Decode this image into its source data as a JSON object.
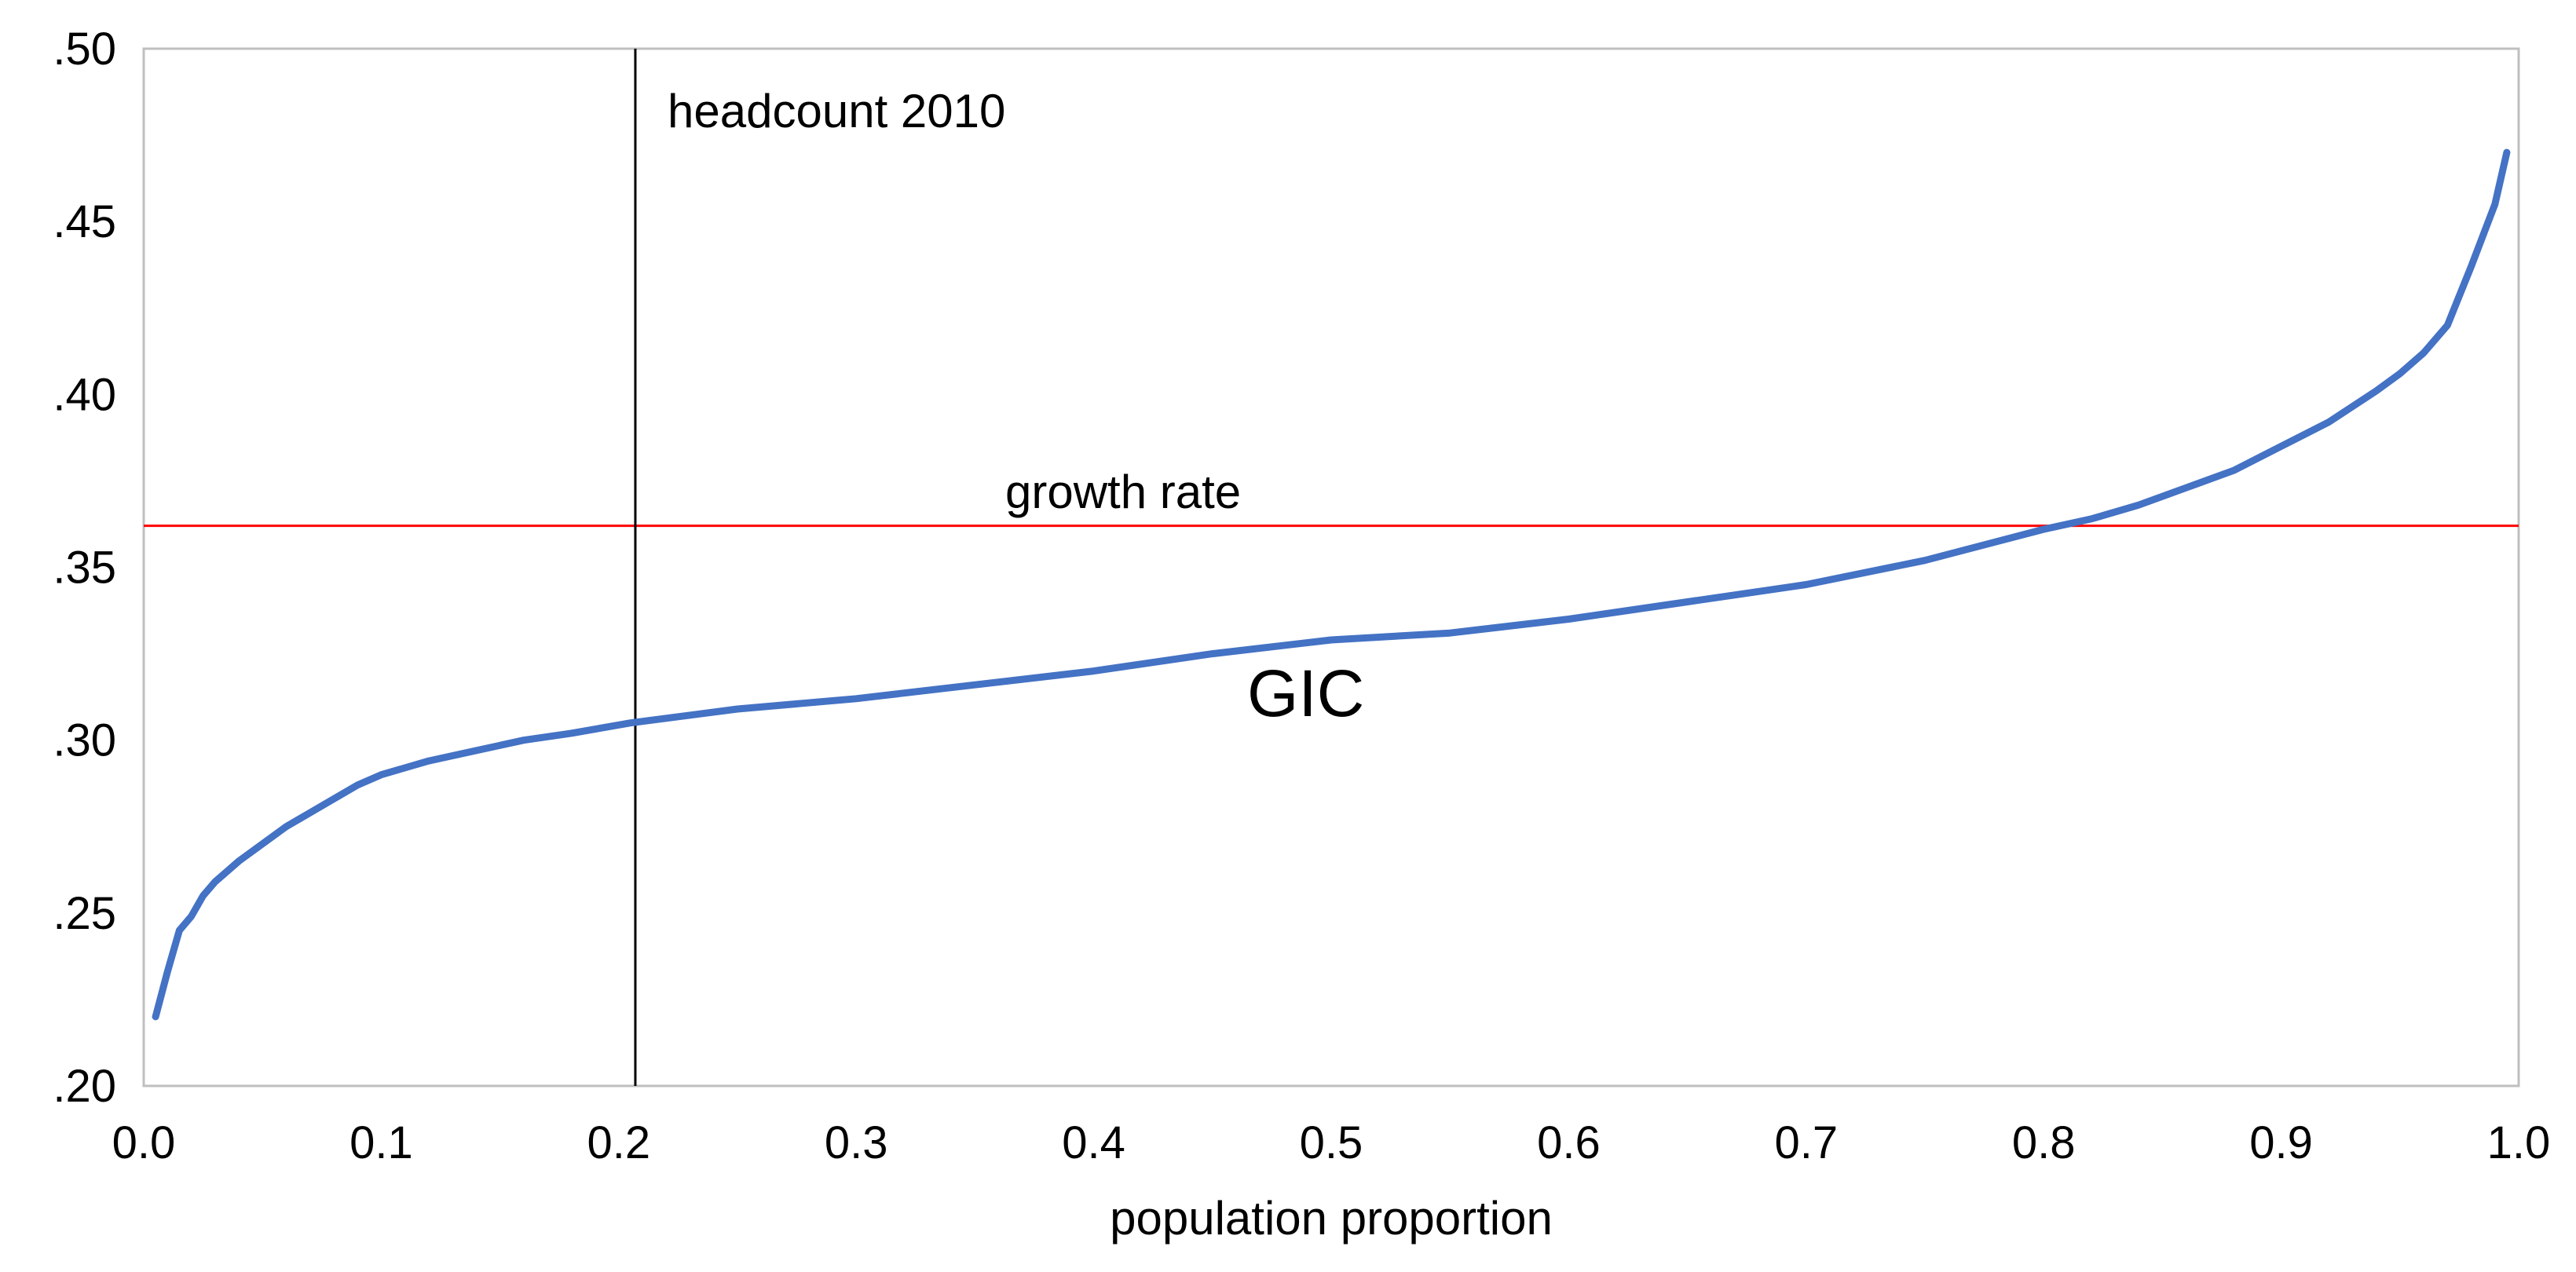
{
  "chart_data": {
    "type": "line",
    "title": "",
    "xlabel": "population proportion",
    "ylabel": "",
    "xlim": [
      0.0,
      1.0
    ],
    "ylim": [
      0.2,
      0.5
    ],
    "grid": false,
    "x_ticks": [
      0.0,
      0.1,
      0.2,
      0.3,
      0.4,
      0.5,
      0.6,
      0.7,
      0.8,
      0.9,
      1.0
    ],
    "x_tick_labels": [
      "0.0",
      "0.1",
      "0.2",
      "0.3",
      "0.4",
      "0.5",
      "0.6",
      "0.7",
      "0.8",
      "0.9",
      "1.0"
    ],
    "y_ticks": [
      0.2,
      0.25,
      0.3,
      0.35,
      0.4,
      0.45,
      0.5
    ],
    "y_tick_labels": [
      ".20",
      ".25",
      ".30",
      ".35",
      ".40",
      ".45",
      ".50"
    ],
    "series": [
      {
        "name": "GIC",
        "color": "#4472C4",
        "x": [
          0.005,
          0.01,
          0.015,
          0.02,
          0.025,
          0.03,
          0.04,
          0.05,
          0.06,
          0.07,
          0.08,
          0.09,
          0.1,
          0.12,
          0.14,
          0.16,
          0.18,
          0.205,
          0.25,
          0.3,
          0.35,
          0.4,
          0.45,
          0.5,
          0.55,
          0.6,
          0.65,
          0.7,
          0.75,
          0.8,
          0.82,
          0.84,
          0.86,
          0.88,
          0.9,
          0.92,
          0.94,
          0.95,
          0.96,
          0.97,
          0.98,
          0.99,
          0.995
        ],
        "y": [
          0.22,
          0.233,
          0.245,
          0.249,
          0.255,
          0.259,
          0.265,
          0.27,
          0.275,
          0.279,
          0.283,
          0.287,
          0.29,
          0.294,
          0.297,
          0.3,
          0.302,
          0.305,
          0.309,
          0.312,
          0.316,
          0.32,
          0.325,
          0.329,
          0.331,
          0.335,
          0.34,
          0.345,
          0.352,
          0.361,
          0.364,
          0.368,
          0.373,
          0.378,
          0.385,
          0.392,
          0.401,
          0.406,
          0.412,
          0.42,
          0.437,
          0.455,
          0.47
        ]
      }
    ],
    "reference_lines": {
      "horizontal": {
        "label": "growth rate",
        "y": 0.362,
        "color": "#FF0000"
      },
      "vertical": {
        "label": "headcount 2010",
        "x": 0.207,
        "color": "#000000"
      }
    },
    "annotations": [
      {
        "text": "headcount 2010"
      },
      {
        "text": "growth rate"
      },
      {
        "text": "GIC"
      }
    ]
  }
}
